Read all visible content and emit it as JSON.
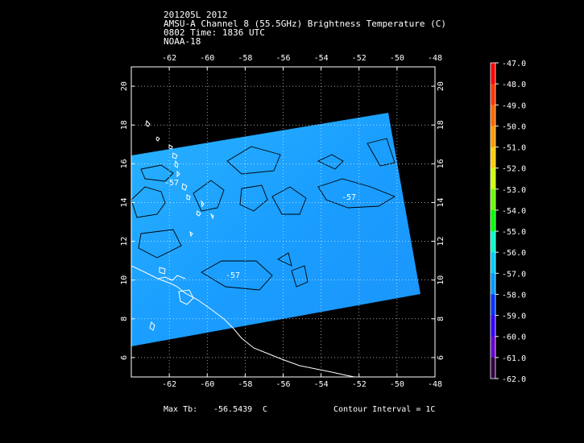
{
  "header": {
    "line1": "201205L 2012",
    "line2": "AMSU-A Channel 8 (55.5GHz) Brightness Temperature (C)",
    "line3": "0802 Time: 1836 UTC",
    "line4": "NOAA-18"
  },
  "map": {
    "lon_range": [
      -64,
      -48
    ],
    "lat_range": [
      5,
      21
    ],
    "lon_ticks": [
      -62,
      -60,
      -58,
      -56,
      -54,
      -52,
      -50,
      -48
    ],
    "lat_ticks": [
      6,
      8,
      10,
      12,
      14,
      16,
      18,
      20
    ],
    "grid": true,
    "contour_label": "-57",
    "data_color": "#1da8ff"
  },
  "colorbar": {
    "levels": [
      "-47.0",
      "-48.0",
      "-49.0",
      "-50.0",
      "-51.0",
      "-52.0",
      "-53.0",
      "-54.0",
      "-55.0",
      "-56.0",
      "-57.0",
      "-58.0",
      "-59.0",
      "-60.0",
      "-61.0",
      "-62.0"
    ],
    "colors": [
      "#ff0000",
      "#ff3300",
      "#ff6600",
      "#ff9900",
      "#ffcc00",
      "#ccff00",
      "#66ff00",
      "#00ff00",
      "#00ffcc",
      "#00ccff",
      "#0099ff",
      "#0033ff",
      "#3300ff",
      "#6600cc",
      "#330044",
      "#000000"
    ]
  },
  "footer": {
    "max_label": "Max Tb:",
    "max_value": "-56.5439",
    "unit": "C",
    "contour": "Contour Interval = 1C"
  }
}
